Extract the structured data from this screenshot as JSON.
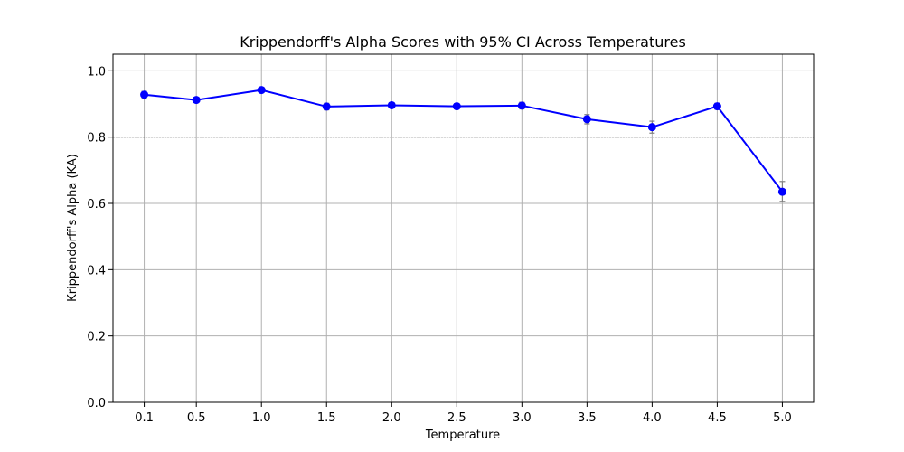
{
  "chart_data": {
    "type": "line",
    "title": "Krippendorff's Alpha Scores with 95% CI Across Temperatures",
    "xlabel": "Temperature",
    "ylabel": "Krippendorff's Alpha (KA)",
    "x": [
      0.1,
      0.5,
      1.0,
      1.5,
      2.0,
      2.5,
      3.0,
      3.5,
      4.0,
      4.5,
      5.0
    ],
    "x_tick_labels": [
      "0.1",
      "0.5",
      "1.0",
      "1.5",
      "2.0",
      "2.5",
      "3.0",
      "3.5",
      "4.0",
      "4.5",
      "5.0"
    ],
    "xlim": [
      -0.14,
      5.24
    ],
    "ylim": [
      0.0,
      1.05
    ],
    "y_ticks": [
      0.0,
      0.2,
      0.4,
      0.6,
      0.8,
      1.0
    ],
    "y_tick_labels": [
      "0.0",
      "0.2",
      "0.4",
      "0.6",
      "0.8",
      "1.0"
    ],
    "grid": true,
    "reference_line": 0.8,
    "series": [
      {
        "values": [
          0.928,
          0.912,
          0.942,
          0.892,
          0.896,
          0.893,
          0.895,
          0.854,
          0.83,
          0.893,
          0.635
        ],
        "ci_low": [
          0.918,
          0.904,
          0.934,
          0.882,
          0.888,
          0.885,
          0.885,
          0.84,
          0.812,
          0.884,
          0.606
        ],
        "ci_high": [
          0.938,
          0.92,
          0.95,
          0.902,
          0.904,
          0.901,
          0.905,
          0.868,
          0.848,
          0.902,
          0.666
        ],
        "color": "#0000ff"
      }
    ],
    "colors": {
      "line": "#0000ff",
      "errorbar": "#808080",
      "grid": "#b0b0b0",
      "reference": "#000000"
    }
  }
}
